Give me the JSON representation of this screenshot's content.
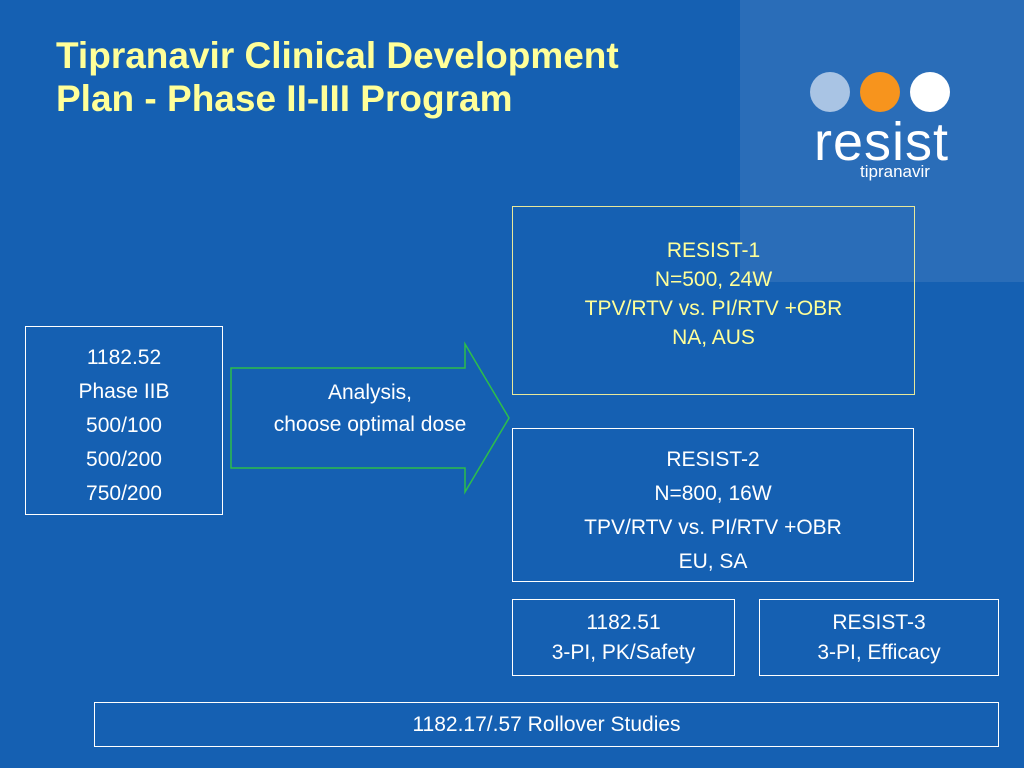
{
  "title": {
    "line1": "Tipranavir Clinical Development",
    "line2": "Plan - Phase II-III Program"
  },
  "logo": {
    "word": "resist",
    "subtitle": "tipranavir",
    "dots": [
      {
        "name": "light-blue-dot",
        "color": "#A9C4E4"
      },
      {
        "name": "orange-dot",
        "color": "#F7941D"
      },
      {
        "name": "white-dot",
        "color": "#FFFFFF"
      }
    ]
  },
  "colors": {
    "background": "#1560B2",
    "title": "#FFFF99",
    "arrow_border": "#2DBE4A"
  },
  "phase2b": {
    "lines": [
      "1182.52",
      "Phase IIB",
      "500/100",
      "500/200",
      "750/200"
    ]
  },
  "arrow": {
    "line1": "Analysis,",
    "line2": "choose optimal dose"
  },
  "resist1": {
    "lines": [
      "RESIST-1",
      "N=500, 24W",
      "TPV/RTV vs. PI/RTV +OBR",
      "NA, AUS"
    ]
  },
  "resist2": {
    "lines": [
      "RESIST-2",
      "N=800, 16W",
      "TPV/RTV vs. PI/RTV +OBR",
      "EU, SA"
    ]
  },
  "study51": {
    "lines": [
      "1182.51",
      "3-PI, PK/Safety"
    ]
  },
  "resist3": {
    "lines": [
      "RESIST-3",
      "3-PI, Efficacy"
    ]
  },
  "rollover": {
    "label": "1182.17/.57 Rollover Studies"
  }
}
